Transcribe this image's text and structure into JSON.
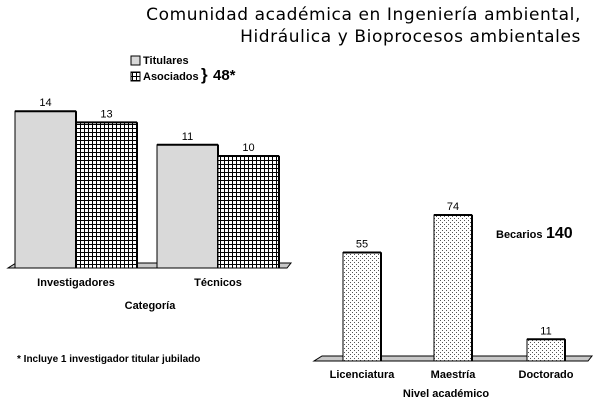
{
  "title_lines": [
    "Comunidad académica en Ingeniería ambiental,",
    "Hidráulica y Bioprocesos ambientales"
  ],
  "footnote": "* Incluye 1 investigador titular jubilado",
  "chart_data": [
    {
      "type": "bar",
      "categories": [
        "Investigadores",
        "Técnicos"
      ],
      "series": [
        {
          "name": "Titulares",
          "values": [
            14,
            11
          ],
          "pattern": "solid",
          "color": "#d9d9d9"
        },
        {
          "name": "Asociados",
          "values": [
            13,
            10
          ],
          "pattern": "grid",
          "color": "#ffffff"
        }
      ],
      "xlabel": "Categoría",
      "ylabel": "",
      "ylim": [
        0,
        15
      ],
      "grid": false,
      "legend_position": "top-right",
      "legend_note": {
        "symbol": "}",
        "text": "48*"
      }
    },
    {
      "type": "bar",
      "categories": [
        "Licenciatura",
        "Maestría",
        "Doctorado"
      ],
      "series": [
        {
          "values": [
            55,
            74,
            11
          ],
          "pattern": "dots",
          "color": "#ffffff"
        }
      ],
      "xlabel": "Nivel académico",
      "ylabel": "",
      "ylim": [
        0,
        80
      ],
      "grid": false,
      "total_label": "Becarios",
      "total_value": "140"
    }
  ]
}
